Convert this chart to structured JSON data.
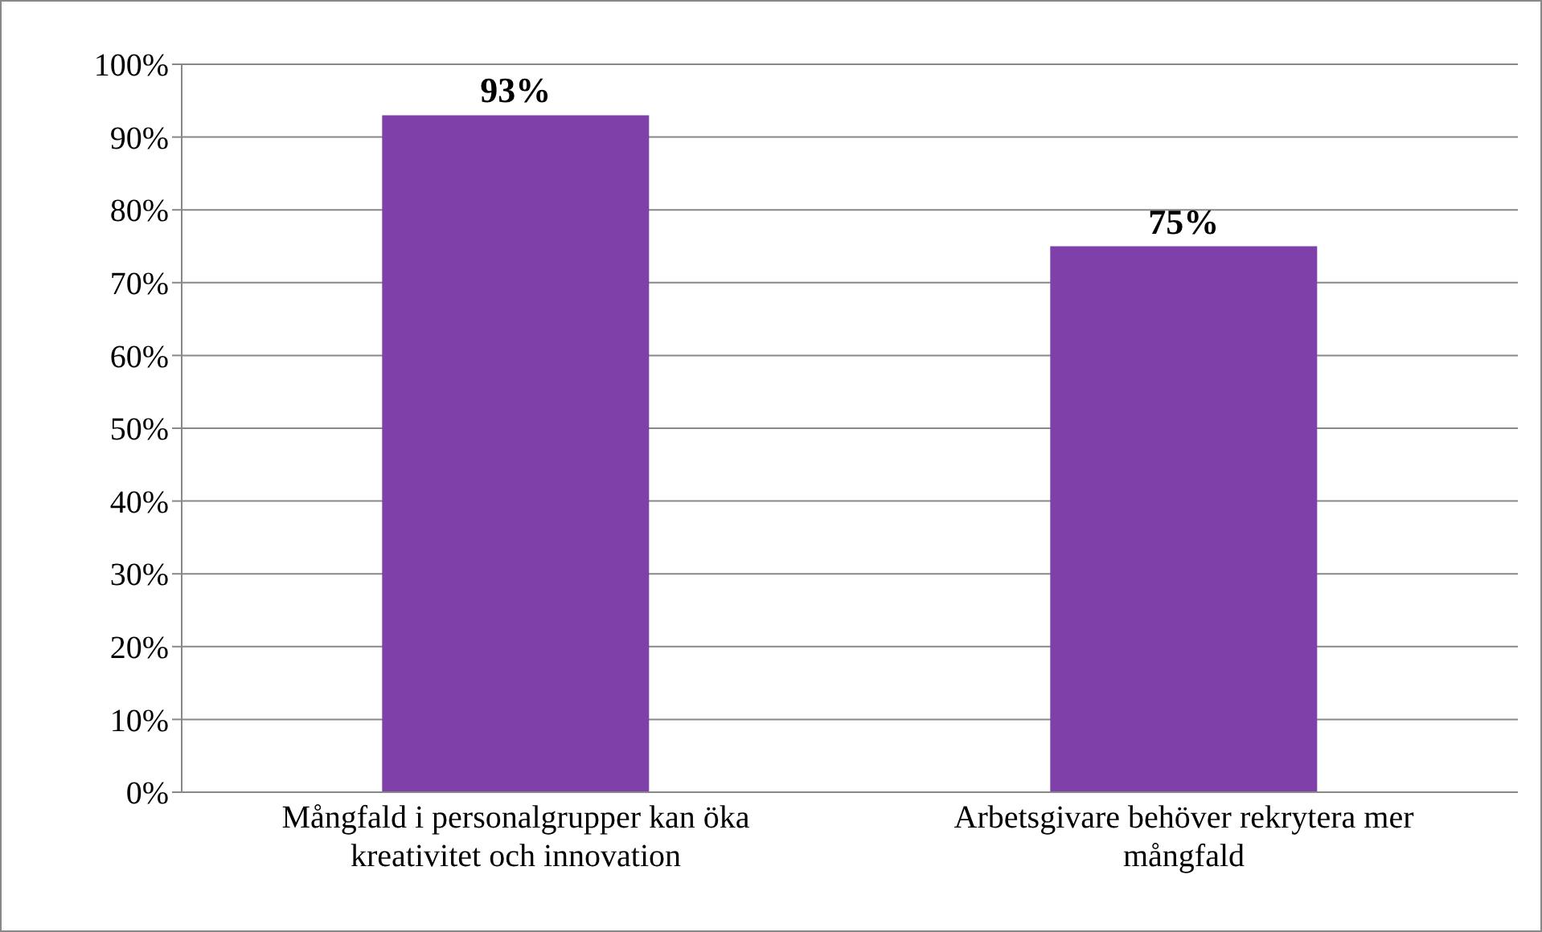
{
  "chart_data": {
    "type": "bar",
    "categories": [
      "Mångfald i personalgrupper kan öka kreativitet och innovation",
      "Arbetsgivare behöver rekrytera mer mångfald"
    ],
    "values": [
      93,
      75
    ],
    "color": "#7f41a9",
    "value_labels": [
      "93%",
      "75%"
    ],
    "ylim": [
      0,
      100
    ],
    "yticks": [
      {
        "value": 0,
        "label": "0%"
      },
      {
        "value": 10,
        "label": "10%"
      },
      {
        "value": 20,
        "label": "20%"
      },
      {
        "value": 30,
        "label": "30%"
      },
      {
        "value": 40,
        "label": "40%"
      },
      {
        "value": 50,
        "label": "50%"
      },
      {
        "value": 60,
        "label": "60%"
      },
      {
        "value": 70,
        "label": "70%"
      },
      {
        "value": 80,
        "label": "80%"
      },
      {
        "value": 90,
        "label": "90%"
      },
      {
        "value": 100,
        "label": "100%"
      }
    ],
    "grid": "y"
  }
}
